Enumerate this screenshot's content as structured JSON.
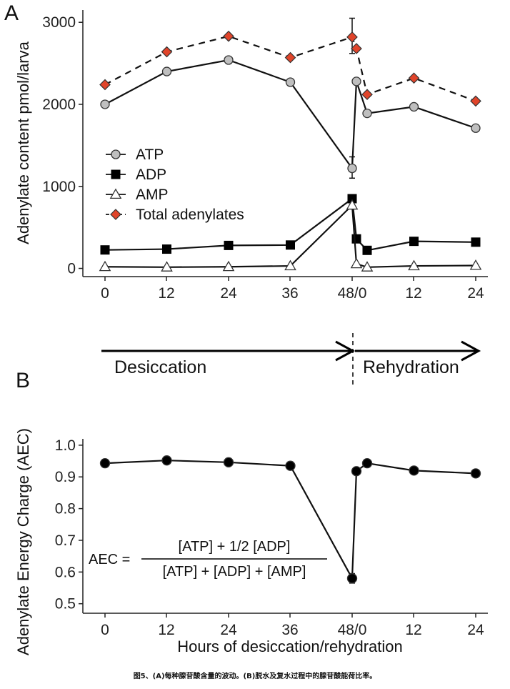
{
  "chart_data": [
    {
      "panel": "A",
      "type": "line",
      "ylabel": "Adenylate content pmol/larva",
      "xlabel": "",
      "xtick_labels": [
        "0",
        "12",
        "24",
        "36",
        "48/0",
        "12",
        "24"
      ],
      "yticks": [
        0,
        1000,
        2000,
        3000
      ],
      "ylim": [
        -100,
        3150
      ],
      "x": [
        0,
        12,
        24,
        36,
        48,
        48.5,
        51,
        60,
        72
      ],
      "series": [
        {
          "name": "ATP",
          "marker": "circle",
          "color": "#bfbfbf",
          "line": "solid",
          "x": [
            0,
            12,
            24,
            36,
            48,
            49,
            51,
            60,
            72
          ],
          "values": [
            2000,
            2400,
            2540,
            2270,
            1220,
            2280,
            1890,
            1970,
            1710
          ],
          "error_bars": [
            {
              "x": 48,
              "low": 1100,
              "high": 1360
            }
          ]
        },
        {
          "name": "ADP",
          "marker": "square",
          "color": "#000000",
          "line": "solid",
          "x": [
            0,
            12,
            24,
            36,
            48,
            49,
            51,
            60,
            72
          ],
          "values": [
            225,
            235,
            280,
            285,
            850,
            360,
            220,
            330,
            320
          ]
        },
        {
          "name": "AMP",
          "marker": "triangle",
          "color": "#ffffff",
          "line": "solid",
          "x": [
            0,
            12,
            24,
            36,
            48,
            49,
            51,
            60,
            72
          ],
          "values": [
            20,
            15,
            20,
            30,
            770,
            55,
            15,
            30,
            35
          ]
        },
        {
          "name": "Total adenylates",
          "marker": "diamond",
          "color": "#e0442a",
          "line": "dashed",
          "x": [
            0,
            12,
            24,
            36,
            48,
            49,
            51,
            60,
            72
          ],
          "values": [
            2240,
            2640,
            2830,
            2570,
            2820,
            2680,
            2120,
            2320,
            2040
          ],
          "error_bars": [
            {
              "x": 48,
              "low": 2620,
              "high": 3050
            }
          ]
        }
      ],
      "legend_position": "center-left"
    },
    {
      "panel": "B",
      "type": "line",
      "ylabel": "Adenylate Energy Charge (AEC)",
      "xlabel": "Hours of desiccation/rehydration",
      "xtick_labels": [
        "0",
        "12",
        "24",
        "36",
        "48/0",
        "12",
        "24"
      ],
      "yticks": [
        0.5,
        0.6,
        0.7,
        0.8,
        0.9,
        1.0
      ],
      "ytick_labels": [
        "0.5",
        "0.6",
        "0.7",
        "0.8",
        "0.9",
        "1.0"
      ],
      "ylim": [
        0.47,
        1.02
      ],
      "series": [
        {
          "name": "AEC",
          "marker": "circle",
          "color": "#000000",
          "line": "solid",
          "x": [
            0,
            12,
            24,
            36,
            48,
            49,
            51,
            60,
            72
          ],
          "values": [
            0.943,
            0.952,
            0.946,
            0.935,
            0.58,
            0.918,
            0.943,
            0.92,
            0.911
          ],
          "error_bars": [
            {
              "x": 48,
              "low": 0.565,
              "high": 0.595
            }
          ]
        }
      ]
    }
  ],
  "phases": {
    "desiccation": "Desiccation",
    "rehydration": "Rehydration"
  },
  "formula": {
    "lhs": "AEC =",
    "numerator": "[ATP]  +  1/2  [ADP]",
    "denominator": "[ATP]  +  [ADP]  +  [AMP]"
  },
  "caption": "图5、(A)每种腺苷酸含量的波动。(B)脱水及复水过程中的腺苷酸能荷比率。"
}
